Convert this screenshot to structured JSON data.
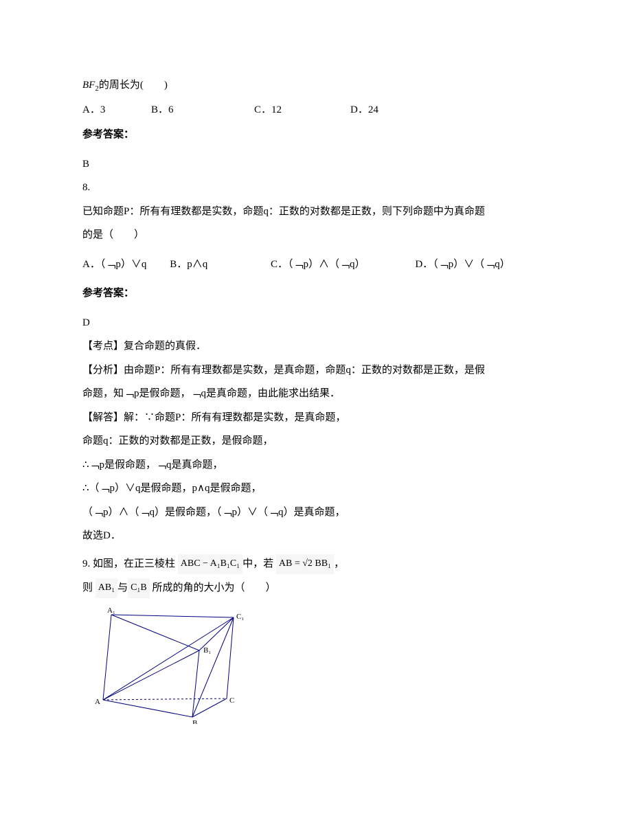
{
  "q7": {
    "stem_prefix": "BF",
    "stem_sub": "2",
    "stem_rest": "的周长为(　　)",
    "opts": {
      "a": "A．3",
      "b": "B．6",
      "c": "C．12",
      "d": "D．24"
    },
    "answer_label": "参考答案：",
    "answer": "B"
  },
  "q8": {
    "num": "8.",
    "stem1": "已知命题P：所有有理数都是实数，命题q：正数的对数都是正数，则下列命题中为真命题",
    "stem2": "的是（　　）",
    "opts": {
      "a": "A．（﹁p）∨q",
      "b": "B．p∧q",
      "c": "C．（﹁p）∧（﹁q）",
      "d": "D．（﹁p）∨（﹁q）"
    },
    "answer_label": "参考答案：",
    "answer": "D",
    "kaodian": "【考点】复合命题的真假．",
    "fenxi1": "【分析】由命题P：所有有理数都是实数，是真命题，命题q：正数的对数都是正数，是假",
    "fenxi2": "命题，知﹁p是假命题，﹁q是真命题，由此能求出结果．",
    "jieda1": "【解答】解：∵命题P：所有有理数都是实数，是真命题，",
    "jieda2": "命题q：正数的对数都是正数，是假命题，",
    "jieda3": "∴﹁p是假命题，﹁q是真命题，",
    "jieda4": "∴（﹁p）∨q是假命题，p∧q是假命题，",
    "jieda5": "（﹁p）∧（﹁q）是假命题，（﹁p）∨（﹁q）是真命题，",
    "jieda6": "故选D．"
  },
  "q9": {
    "prefix": "9. 如图，在正三棱柱",
    "expr1": "ABC − A₁B₁C₁",
    "mid": "中，若",
    "expr2": "AB = √2 BB₁",
    "comma": "，",
    "line2a": "则",
    "expr3": "AB₁",
    "line2b": "与",
    "expr4": "C₁B",
    "line2c": "所成的角的大小为（　　）",
    "prism": {
      "labels": {
        "A1": "A₁",
        "C1": "C₁",
        "B1": "B₁",
        "A": "A",
        "C": "C",
        "B": "B"
      },
      "stroke": "#000080",
      "label_color": "#000000",
      "label_fontsize": 11
    }
  }
}
